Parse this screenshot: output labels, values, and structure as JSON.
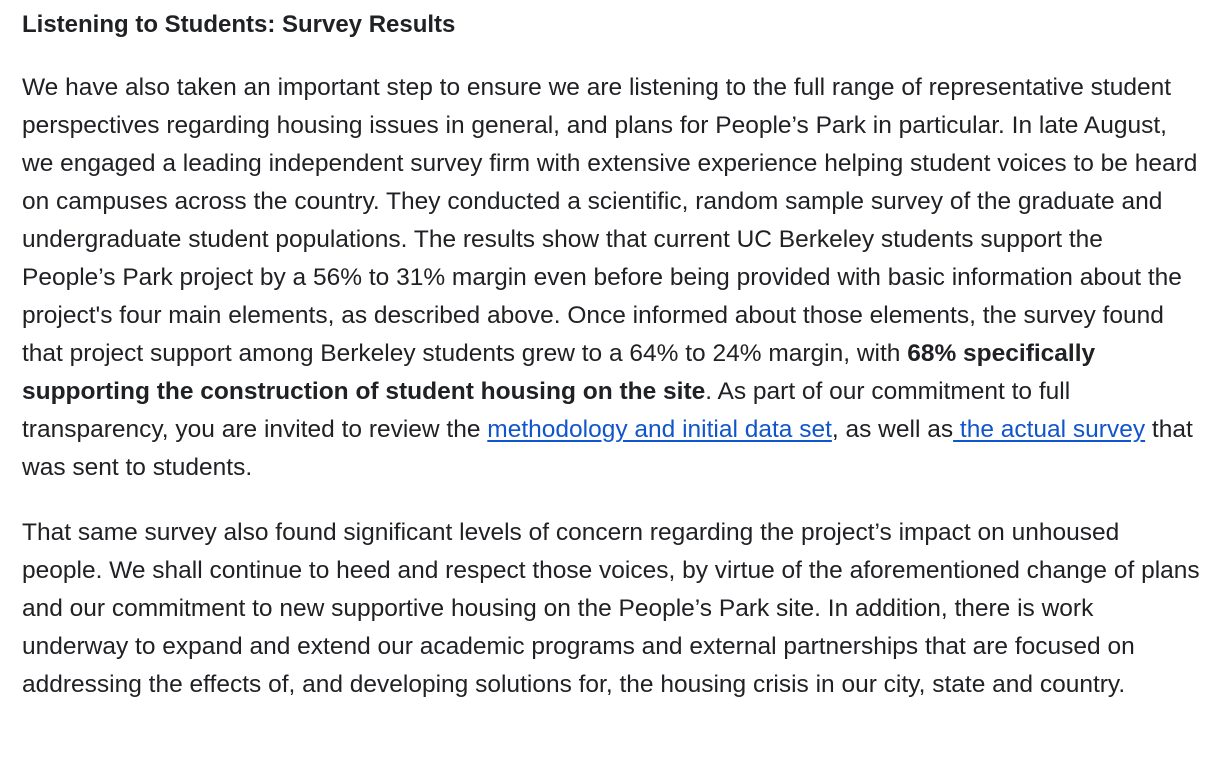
{
  "heading": "Listening to Students: Survey Results",
  "paragraph1": {
    "text_before_bold": "We have also taken an important step to ensure we are listening to the full range of representative student perspectives regarding housing issues in general, and plans for People’s Park in particular. In late August, we engaged a leading independent survey firm with extensive experience helping student voices to be heard on campuses across the country. They conducted a scientific, random sample survey of the graduate and undergraduate student populations. The results show that current UC Berkeley students support the People’s Park project by a 56% to 31% margin even before being provided with basic information about the project's four main elements, as described above. Once informed about those elements, the survey found that project support among Berkeley students grew to a 64% to 24% margin, with ",
    "bold_text": "68% specifically supporting the construction of student housing on the site",
    "text_after_bold": ". As part of our commitment to full transparency, you are invited to review the ",
    "link1_text": "methodology and initial data set",
    "text_between_links": ", as well as",
    "link2_text": " the actual survey",
    "text_end": " that was sent to students."
  },
  "paragraph2": "That same survey also found significant levels of concern regarding the project’s impact on unhoused people. We shall continue to heed and respect those voices, by virtue of the aforementioned change of plans and our commitment to new supportive housing on the People’s Park site. In addition, there is work underway to expand and extend our academic programs and external partnerships that are focused on addressing the effects of, and developing solutions for, the housing crisis in our city, state and country.",
  "colors": {
    "text": "#202124",
    "link": "#1155cc",
    "background": "#ffffff"
  }
}
